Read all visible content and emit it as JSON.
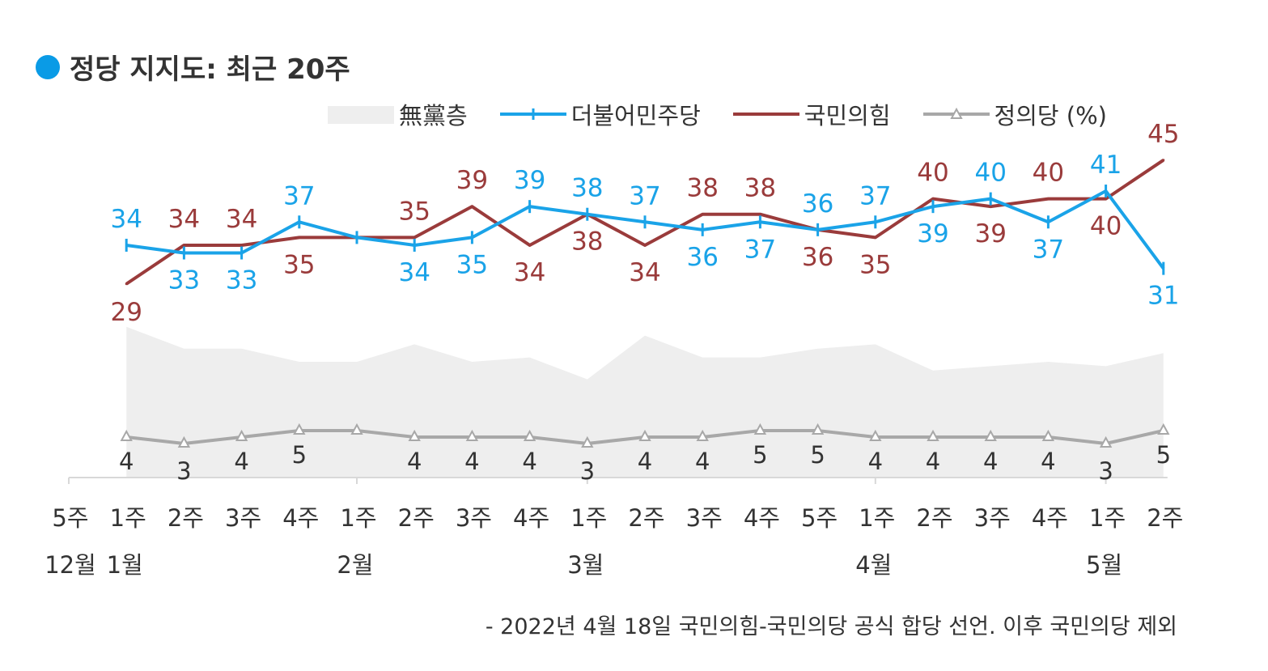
{
  "title": "정당 지지도: 최근 20주",
  "colors": {
    "title_dot": "#0a9be6",
    "democratic": "#1aa3e8",
    "ppp": "#9a3b3b",
    "justice": "#a8a8a8",
    "nonpartisan": "#eeeeee"
  },
  "legend": {
    "nonpartisan": "無黨층",
    "democratic": "더불어민주당",
    "ppp": "국민의힘",
    "justice": "정의당 (%)"
  },
  "note": "- 2022년 4월 18일 국민의힘-국민의당 공식 합당 선언. 이후 국민의당 제외",
  "chart_data": {
    "type": "line",
    "title": "정당 지지도: 최근 20주",
    "categories": [
      "5주",
      "1주",
      "2주",
      "3주",
      "4주",
      "1주",
      "2주",
      "3주",
      "4주",
      "1주",
      "2주",
      "3주",
      "4주",
      "5주",
      "1주",
      "2주",
      "3주",
      "4주",
      "1주",
      "2주"
    ],
    "month_labels": [
      {
        "index": 0,
        "label": "12월"
      },
      {
        "index": 1,
        "label": "1월"
      },
      {
        "index": 5,
        "label": "2월"
      },
      {
        "index": 9,
        "label": "3월"
      },
      {
        "index": 14,
        "label": "4월"
      },
      {
        "index": 18,
        "label": "5월"
      }
    ],
    "series": [
      {
        "name": "더불어민주당",
        "key": "democratic",
        "values": [
          null,
          34,
          33,
          33,
          37,
          35,
          34,
          35,
          39,
          38,
          37,
          36,
          37,
          36,
          37,
          39,
          40,
          37,
          41,
          31
        ],
        "labels": [
          null,
          "34",
          "33",
          "33",
          "37",
          null,
          "34",
          "35",
          "39",
          "38",
          "37",
          "36",
          "37",
          "36",
          "37",
          "39",
          "40",
          "37",
          "41",
          "31"
        ]
      },
      {
        "name": "국민의힘",
        "key": "ppp",
        "values": [
          null,
          29,
          34,
          34,
          35,
          35,
          35,
          39,
          34,
          38,
          34,
          38,
          38,
          36,
          35,
          40,
          39,
          40,
          40,
          45
        ],
        "labels": [
          null,
          "29",
          "34",
          "34",
          "35",
          null,
          "35",
          "39",
          "34",
          "38",
          "34",
          "38",
          "38",
          "36",
          "35",
          "40",
          "39",
          "40",
          "40",
          "45"
        ]
      },
      {
        "name": "정의당",
        "key": "justice",
        "values": [
          null,
          4,
          3,
          4,
          5,
          5,
          4,
          4,
          4,
          3,
          4,
          4,
          5,
          5,
          4,
          4,
          4,
          4,
          3,
          5
        ],
        "labels": [
          null,
          "4",
          "3",
          "4",
          "5",
          null,
          "4",
          "4",
          "4",
          "3",
          "4",
          "4",
          "5",
          "5",
          "4",
          "4",
          "4",
          "4",
          "3",
          "5"
        ]
      },
      {
        "name": "無黨층",
        "key": "nonpartisan",
        "values": [
          null,
          28,
          23,
          23,
          20,
          20,
          24,
          20,
          21,
          16,
          26,
          21,
          21,
          23,
          24,
          18,
          19,
          20,
          19,
          22
        ]
      }
    ]
  }
}
